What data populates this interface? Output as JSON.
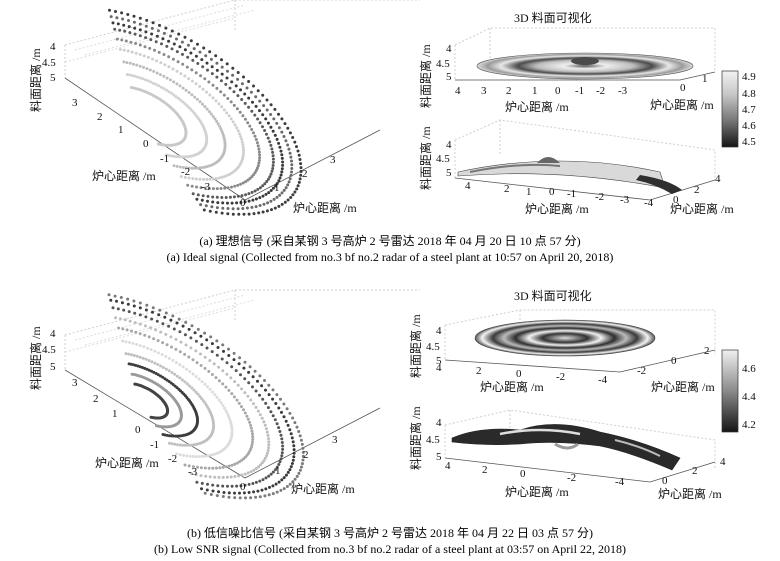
{
  "captions": {
    "a_cn": "(a) 理想信号 (采自某钢 3 号高炉 2 号雷达 2018 年 04 月 20 日 10 点 57 分)",
    "a_en": "(a) Ideal signal (Collected from no.3 bf no.2 radar of a steel plant at 10:57 on April 20, 2018)",
    "b_cn": "(b) 低信噪比信号 (采自某钢 3 号高炉 2 号雷达 2018 年 04 月 22 日 03 点 57 分)",
    "b_en": "(b) Low SNR signal (Collected from no.3 bf no.2 radar of a steel plant at 03:57 on April 22, 2018)"
  },
  "labels": {
    "title_3d": "3D 料面可视化",
    "axis_dist": "炉心距离 /m",
    "axis_height": "料面距离 /m"
  },
  "colors": {
    "grid": "#bdbdbd",
    "dark": "#3a3a3a",
    "mid": "#8c8c8c",
    "light": "#d6d6d6"
  },
  "chart_data": [
    {
      "type": "scatter",
      "panel": "a-left",
      "xlabel": "炉心距离 /m",
      "ylabel": "炉心距离 /m",
      "zlabel": "料面距离 /m",
      "xticks": [
        "3",
        "2",
        "1",
        "0",
        "-1",
        "-2",
        "-3"
      ],
      "yticks": [
        "0",
        "1",
        "2",
        "3"
      ],
      "zticks": [
        "4",
        "4.5",
        "5"
      ]
    },
    {
      "type": "heatmap",
      "panel": "a-right-top",
      "title": "3D 料面可视化",
      "xlabel": "炉心距离 /m",
      "ylabel": "炉心距离 /m",
      "zlabel": "料面距离 /m",
      "xticks": [
        "4",
        "3",
        "2",
        "1",
        "0",
        "-1",
        "-2",
        "-3"
      ],
      "yticks": [
        "0",
        "1"
      ],
      "zticks": [
        "4",
        "4.5",
        "5"
      ]
    },
    {
      "type": "heatmap",
      "panel": "a-right-bottom",
      "xlabel": "炉心距离 /m",
      "ylabel": "炉心距离 /m",
      "zlabel": "料面距离 /m",
      "xticks": [
        "4",
        "2",
        "1",
        "0",
        "-1",
        "-2",
        "-3",
        "-4"
      ],
      "yticks": [
        "0",
        "2",
        "4"
      ],
      "zticks": [
        "4",
        "4.5",
        "5"
      ],
      "colorbar": {
        "ticks": [
          "4.5",
          "4.6",
          "4.7",
          "4.8",
          "4.9"
        ],
        "range": [
          4.45,
          4.95
        ]
      }
    },
    {
      "type": "scatter",
      "panel": "b-left",
      "xlabel": "炉心距离 /m",
      "ylabel": "炉心距离 /m",
      "zlabel": "料面距离 /m",
      "xticks": [
        "3",
        "2",
        "1",
        "0",
        "-1",
        "-2",
        "-3"
      ],
      "yticks": [
        "0",
        "1",
        "2",
        "3"
      ],
      "zticks": [
        "4",
        "4.5",
        "5"
      ]
    },
    {
      "type": "heatmap",
      "panel": "b-right-top",
      "title": "3D 料面可视化",
      "xlabel": "炉心距离 /m",
      "ylabel": "炉心距离 /m",
      "zlabel": "料面距离 /m",
      "xticks": [
        "4",
        "2",
        "0",
        "-2",
        "-4"
      ],
      "yticks": [
        "-2",
        "0",
        "2"
      ],
      "zticks": [
        "4",
        "4.5",
        "5"
      ]
    },
    {
      "type": "heatmap",
      "panel": "b-right-bottom",
      "xlabel": "炉心距离 /m",
      "ylabel": "炉心距离 /m",
      "zlabel": "料面距离 /m",
      "xticks": [
        "4",
        "2",
        "0",
        "-2",
        "-4"
      ],
      "yticks": [
        "0",
        "2",
        "4"
      ],
      "zticks": [
        "4",
        "4.5",
        "5"
      ],
      "colorbar": {
        "ticks": [
          "4.2",
          "4.4",
          "4.6"
        ],
        "range": [
          4.15,
          4.7
        ]
      }
    }
  ]
}
